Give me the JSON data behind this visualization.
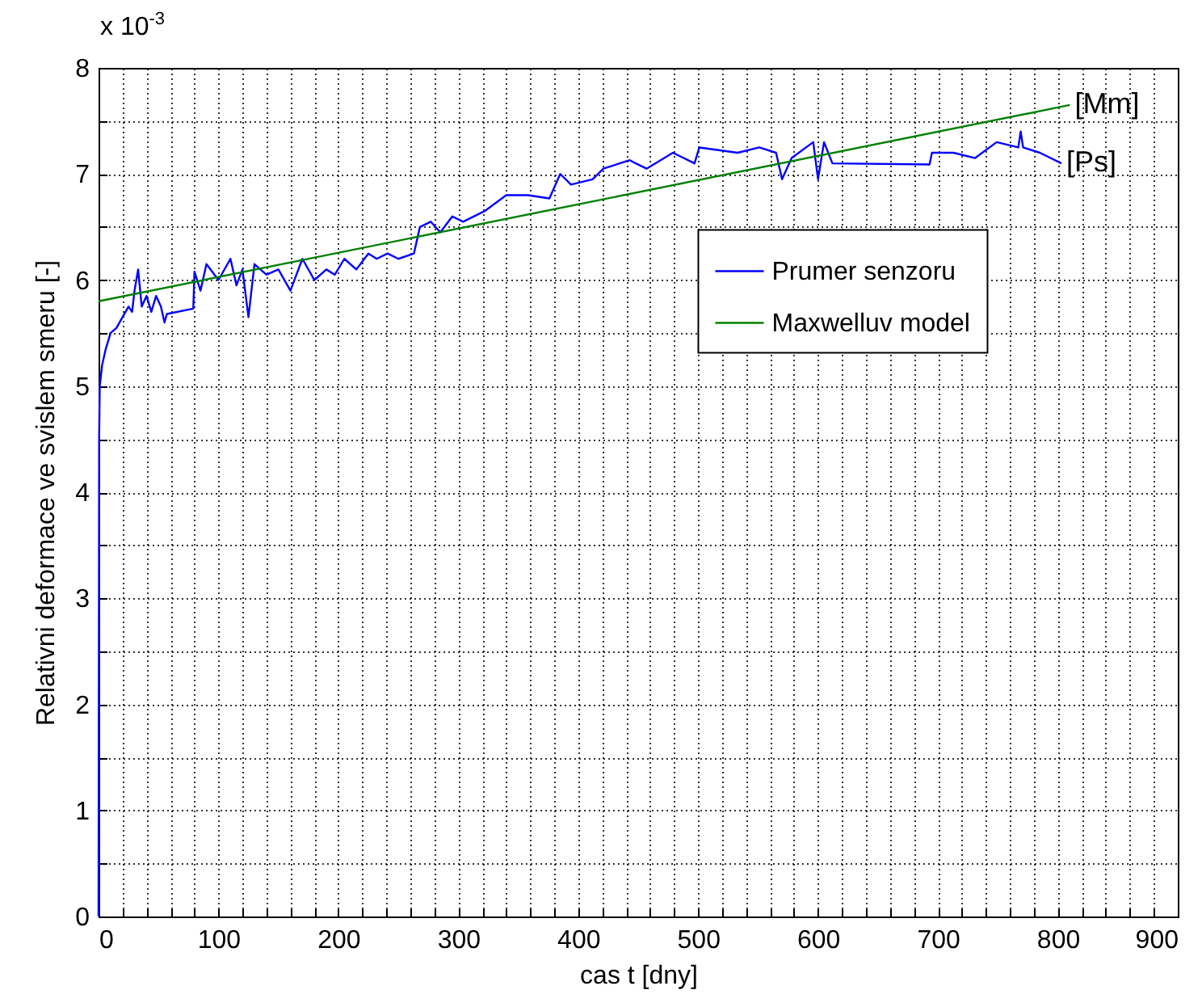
{
  "chart_data": {
    "type": "line",
    "xlabel": "cas t [dny]",
    "ylabel": "Relativni deformace ve svislem smeru [-]",
    "series": [
      {
        "name": "Prumer senzoru",
        "color": "#0000ff",
        "x": [
          0,
          0.5,
          1,
          3,
          6,
          10,
          15,
          20,
          25,
          28,
          30,
          33,
          36,
          40,
          44,
          48,
          52,
          55,
          57,
          79,
          80,
          85,
          90,
          100,
          110,
          115,
          120,
          125,
          130,
          140,
          150,
          160,
          170,
          180,
          190,
          197,
          205,
          215,
          225,
          232,
          241,
          250,
          263,
          268,
          277,
          285,
          295,
          304,
          322,
          340,
          358,
          376,
          385,
          394,
          412,
          421,
          443,
          448,
          457,
          479,
          497,
          501,
          533,
          551,
          565,
          570,
          578,
          596,
          600,
          605,
          612,
          693,
          695,
          713,
          731,
          749,
          767,
          769,
          771,
          785,
          803
        ],
        "values": [
          0,
          4.5,
          5.0,
          5.2,
          5.35,
          5.5,
          5.55,
          5.65,
          5.75,
          5.7,
          5.9,
          6.1,
          5.75,
          5.85,
          5.7,
          5.85,
          5.75,
          5.6,
          5.68,
          5.73,
          6.08,
          5.9,
          6.15,
          6.0,
          6.2,
          5.95,
          6.1,
          5.65,
          6.15,
          6.05,
          6.1,
          5.9,
          6.2,
          6.0,
          6.1,
          6.05,
          6.2,
          6.1,
          6.25,
          6.2,
          6.25,
          6.2,
          6.25,
          6.5,
          6.55,
          6.45,
          6.6,
          6.55,
          6.65,
          6.8,
          6.8,
          6.77,
          7.0,
          6.9,
          6.95,
          7.05,
          7.13,
          7.1,
          7.05,
          7.2,
          7.1,
          7.25,
          7.2,
          7.25,
          7.2,
          6.95,
          7.15,
          7.3,
          6.95,
          7.3,
          7.1,
          7.09,
          7.2,
          7.2,
          7.15,
          7.3,
          7.25,
          7.4,
          7.25,
          7.2,
          7.1
        ]
      },
      {
        "name": "Maxwelluv model",
        "color": "#008000",
        "x": [
          0,
          810
        ],
        "values": [
          5.8,
          7.65
        ]
      }
    ],
    "annotations": [
      "x 10$^{-3}$",
      {
        "text": "[Mm]",
        "x": 810,
        "y": 7.65
      },
      {
        "text": "[Ps]",
        "x": 803,
        "y": 7.1
      }
    ],
    "xlim": [
      0,
      900
    ],
    "xticks": [
      0,
      {
        "value": 20,
        "label": null
      },
      {
        "value": 40,
        "label": null
      },
      {
        "value": 60,
        "label": null
      },
      {
        "value": 80,
        "label": null
      },
      100,
      {
        "value": 120,
        "label": null
      },
      {
        "value": 140,
        "label": null
      },
      {
        "value": 160,
        "label": null
      },
      {
        "value": 180,
        "label": null
      },
      200,
      {
        "value": 220,
        "label": null
      },
      {
        "value": 240,
        "label": null
      },
      {
        "value": 260,
        "label": null
      },
      {
        "value": 280,
        "label": null
      },
      300,
      {
        "value": 320,
        "label": null
      },
      {
        "value": 340,
        "label": null
      },
      {
        "value": 360,
        "label": null
      },
      {
        "value": 380,
        "label": null
      },
      400,
      {
        "value": 420,
        "label": null
      },
      {
        "value": 440,
        "label": null
      },
      {
        "value": 460,
        "label": null
      },
      {
        "value": 480,
        "label": null
      },
      500,
      {
        "value": 520,
        "label": null
      },
      {
        "value": 540,
        "label": null
      },
      {
        "value": 560,
        "label": null
      },
      {
        "value": 580,
        "label": null
      },
      600,
      {
        "value": 620,
        "label": null
      },
      {
        "value": 640,
        "label": null
      },
      {
        "value": 660,
        "label": null
      },
      {
        "value": 680,
        "label": null
      },
      700,
      {
        "value": 720,
        "label": null
      },
      {
        "value": 740,
        "label": null
      },
      {
        "value": 760,
        "label": null
      },
      {
        "value": 780,
        "label": null
      },
      800,
      {
        "value": 820,
        "label": null
      },
      {
        "value": 840,
        "label": null
      },
      {
        "value": 860,
        "label": null
      },
      {
        "value": 880,
        "label": null
      },
      900
    ],
    "ylim": [
      0,
      8
    ],
    "yticks": [
      0,
      {
        "value": 0.5,
        "label": null
      },
      1,
      {
        "value": 1.5,
        "label": null
      },
      2,
      {
        "value": 2.5,
        "label": null
      },
      3,
      {
        "value": 3.5,
        "label": null
      },
      4,
      {
        "value": 4.5,
        "label": null
      },
      5,
      {
        "value": 5.5,
        "label": null
      },
      6,
      {
        "value": 6.5,
        "label": null
      },
      7,
      {
        "value": 7.5,
        "label": null
      },
      8
    ],
    "grid": true,
    "legend": "top right",
    "marker": "none",
    "line_style": "solid"
  }
}
